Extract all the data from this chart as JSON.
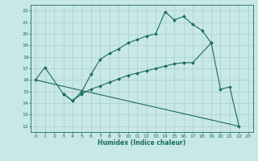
{
  "xlabel": "Humidex (Indice chaleur)",
  "xlim": [
    -0.5,
    23.5
  ],
  "ylim": [
    11.5,
    22.5
  ],
  "xticks": [
    0,
    1,
    2,
    3,
    4,
    5,
    6,
    7,
    8,
    9,
    10,
    11,
    12,
    13,
    14,
    15,
    16,
    17,
    18,
    19,
    20,
    21,
    22,
    23
  ],
  "yticks": [
    12,
    13,
    14,
    15,
    16,
    17,
    18,
    19,
    20,
    21,
    22
  ],
  "bg_color": "#c8e8e8",
  "grid_color": "#a8cccc",
  "line_color": "#1a6b5a",
  "line1_x": [
    0,
    1,
    3,
    4,
    5,
    6,
    7,
    8,
    9,
    10,
    11,
    12,
    13,
    14,
    15,
    16,
    17,
    18,
    19
  ],
  "line1_y": [
    16.0,
    17.1,
    14.8,
    14.2,
    15.0,
    16.5,
    17.8,
    18.3,
    18.7,
    19.2,
    19.5,
    19.8,
    20.0,
    21.9,
    21.2,
    21.5,
    20.8,
    20.3,
    19.2
  ],
  "line2_x": [
    0,
    22
  ],
  "line2_y": [
    16.0,
    12.0
  ],
  "line3_x": [
    3,
    4,
    5,
    6,
    7,
    8,
    9,
    10,
    11,
    12,
    13,
    14,
    15,
    16,
    17,
    19,
    20,
    21,
    22
  ],
  "line3_y": [
    14.8,
    14.2,
    14.8,
    15.2,
    15.5,
    15.8,
    16.1,
    16.4,
    16.6,
    16.8,
    17.0,
    17.2,
    17.4,
    17.5,
    17.5,
    19.2,
    15.2,
    15.4,
    12.0
  ]
}
